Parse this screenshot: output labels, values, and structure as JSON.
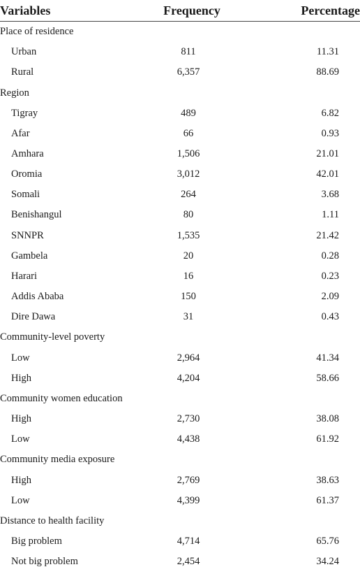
{
  "header": {
    "variables": "Variables",
    "frequency": "Frequency",
    "percentage": "Percentage"
  },
  "rows": [
    {
      "type": "group",
      "label": "Place of residence"
    },
    {
      "type": "item",
      "label": "Urban",
      "frequency": "811",
      "percentage": "11.31"
    },
    {
      "type": "item",
      "label": "Rural",
      "frequency": "6,357",
      "percentage": "88.69"
    },
    {
      "type": "group",
      "label": "Region"
    },
    {
      "type": "item",
      "label": "Tigray",
      "frequency": "489",
      "percentage": "6.82"
    },
    {
      "type": "item",
      "label": "Afar",
      "frequency": "66",
      "percentage": "0.93"
    },
    {
      "type": "item",
      "label": "Amhara",
      "frequency": "1,506",
      "percentage": "21.01"
    },
    {
      "type": "item",
      "label": "Oromia",
      "frequency": "3,012",
      "percentage": "42.01"
    },
    {
      "type": "item",
      "label": "Somali",
      "frequency": "264",
      "percentage": "3.68"
    },
    {
      "type": "item",
      "label": "Benishangul",
      "frequency": "80",
      "percentage": "1.11"
    },
    {
      "type": "item",
      "label": "SNNPR",
      "frequency": "1,535",
      "percentage": "21.42"
    },
    {
      "type": "item",
      "label": "Gambela",
      "frequency": "20",
      "percentage": "0.28"
    },
    {
      "type": "item",
      "label": "Harari",
      "frequency": "16",
      "percentage": "0.23"
    },
    {
      "type": "item",
      "label": "Addis Ababa",
      "frequency": "150",
      "percentage": "2.09"
    },
    {
      "type": "item",
      "label": "Dire Dawa",
      "frequency": "31",
      "percentage": "0.43"
    },
    {
      "type": "group",
      "label": "Community-level poverty"
    },
    {
      "type": "item",
      "label": "Low",
      "frequency": "2,964",
      "percentage": "41.34"
    },
    {
      "type": "item",
      "label": "High",
      "frequency": "4,204",
      "percentage": "58.66"
    },
    {
      "type": "group",
      "label": "Community women education"
    },
    {
      "type": "item",
      "label": "High",
      "frequency": "2,730",
      "percentage": "38.08"
    },
    {
      "type": "item",
      "label": "Low",
      "frequency": "4,438",
      "percentage": "61.92"
    },
    {
      "type": "group",
      "label": "Community media exposure"
    },
    {
      "type": "item",
      "label": "High",
      "frequency": "2,769",
      "percentage": "38.63"
    },
    {
      "type": "item",
      "label": "Low",
      "frequency": "4,399",
      "percentage": "61.37"
    },
    {
      "type": "group",
      "label": "Distance to health facility"
    },
    {
      "type": "item",
      "label": "Big problem",
      "frequency": "4,714",
      "percentage": "65.76"
    },
    {
      "type": "item",
      "label": "Not big problem",
      "frequency": "2,454",
      "percentage": "34.24"
    }
  ]
}
